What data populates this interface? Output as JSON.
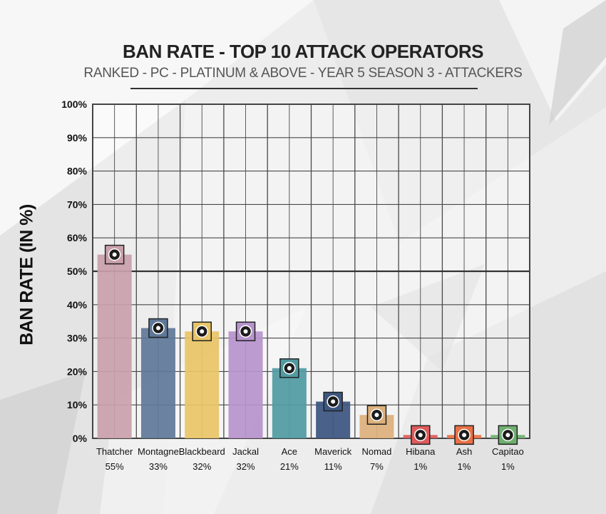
{
  "chart_data": {
    "type": "bar",
    "title": "BAN RATE - TOP 10 ATTACK OPERATORS",
    "subtitle": "RANKED - PC - PLATINUM & ABOVE - YEAR 5 SEASON 3 - ATTACKERS",
    "ylabel": "BAN RATE (IN %)",
    "xlabel": "",
    "ylim": [
      0,
      100
    ],
    "yticks": [
      0,
      10,
      20,
      30,
      40,
      50,
      60,
      70,
      80,
      90,
      100
    ],
    "ytick_labels": [
      "0%",
      "10%",
      "20%",
      "30%",
      "40%",
      "50%",
      "60%",
      "70%",
      "80%",
      "90%",
      "100%"
    ],
    "grid": true,
    "reference_line": 50,
    "categories": [
      "Thatcher",
      "Montagne",
      "Blackbeard",
      "Jackal",
      "Ace",
      "Maverick",
      "Nomad",
      "Hibana",
      "Ash",
      "Capitao"
    ],
    "values": [
      55,
      33,
      32,
      32,
      21,
      11,
      7,
      1,
      1,
      1
    ],
    "value_labels": [
      "55%",
      "33%",
      "32%",
      "32%",
      "21%",
      "11%",
      "7%",
      "1%",
      "1%",
      "1%"
    ],
    "colors": [
      "#c9a0ab",
      "#5e7898",
      "#e8c466",
      "#b693cc",
      "#4f9ba2",
      "#3c5680",
      "#ddb07c",
      "#dd5b5b",
      "#ea7145",
      "#6fb06f"
    ],
    "icons": [
      "shield-emp-icon",
      "shield-cross-icon",
      "skull-shield-icon",
      "eye-icon",
      "blade-icon",
      "dragon-icon",
      "target-icon",
      "flower-icon",
      "bullet-icon",
      "arrow-icon"
    ]
  }
}
